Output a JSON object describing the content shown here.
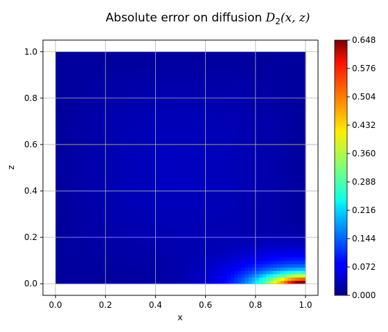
{
  "chart_data": {
    "type": "heatmap",
    "title_prefix": "Absolute error on diffusion ",
    "title_math_symbol": "D",
    "title_math_subscript": "2",
    "title_math_args": "(x, z)",
    "xlabel": "x",
    "ylabel": "z",
    "xlim": [
      -0.05,
      1.05
    ],
    "ylim": [
      -0.05,
      1.05
    ],
    "x_ticks": [
      0.0,
      0.2,
      0.4,
      0.6,
      0.8,
      1.0
    ],
    "x_tick_labels": [
      "0.0",
      "0.2",
      "0.4",
      "0.6",
      "0.8",
      "1.0"
    ],
    "y_ticks": [
      0.0,
      0.2,
      0.4,
      0.6,
      0.8,
      1.0
    ],
    "y_tick_labels": [
      "0.0",
      "0.2",
      "0.4",
      "0.6",
      "0.8",
      "1.0"
    ],
    "grid": true,
    "colormap": "jet",
    "domain_x": [
      0.0,
      1.0
    ],
    "domain_z": [
      0.0,
      1.0
    ],
    "colorbar": {
      "range": [
        0.0,
        0.648
      ],
      "ticks": [
        0.0,
        0.072,
        0.144,
        0.216,
        0.288,
        0.36,
        0.432,
        0.504,
        0.576,
        0.648
      ],
      "tick_labels": [
        "0.000",
        "0.072",
        "0.144",
        "0.216",
        "0.288",
        "0.360",
        "0.432",
        "0.504",
        "0.576",
        "0.648"
      ]
    },
    "summary": {
      "background_error": 0.03,
      "max_error": 0.648,
      "max_location": [
        1.0,
        0.0
      ]
    }
  },
  "colors": {
    "grid": "#b0b0b0",
    "axes": "#000000",
    "background": "#ffffff"
  }
}
